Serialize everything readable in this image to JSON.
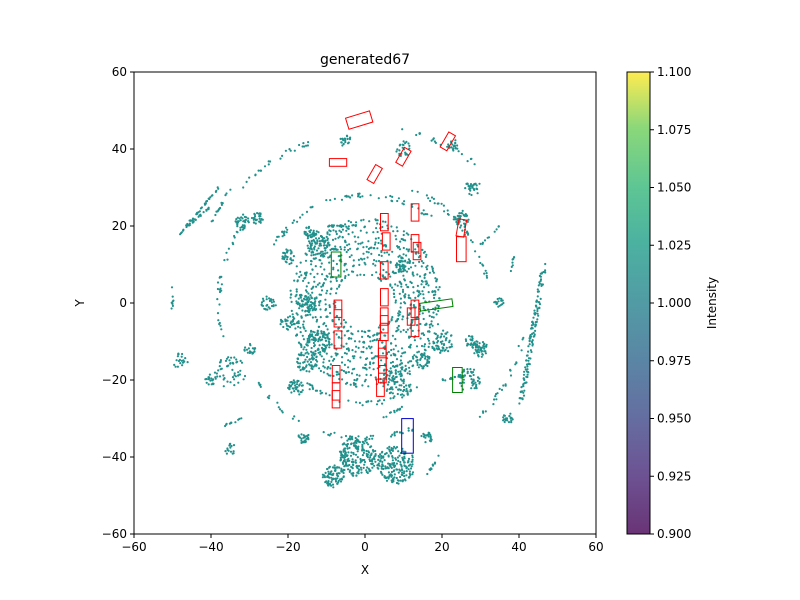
{
  "chart_data": {
    "type": "scatter",
    "title": "generated67",
    "xlabel": "X",
    "ylabel": "Y",
    "xlim": [
      -60,
      60
    ],
    "ylim": [
      -60,
      60
    ],
    "xticks": [
      -60,
      -40,
      -20,
      0,
      20,
      40,
      60
    ],
    "yticks": [
      -60,
      -40,
      -20,
      0,
      20,
      40,
      60
    ],
    "grid": false,
    "point_color": "#21918c",
    "colorbar": {
      "label": "Intensity",
      "range": [
        0.9,
        1.1
      ],
      "ticks": [
        "0.900",
        "0.925",
        "0.950",
        "0.975",
        "1.000",
        "1.025",
        "1.050",
        "1.075",
        "1.100"
      ],
      "colormap": "viridis"
    },
    "boxes": [
      {
        "color": "#ff0000",
        "cx": -1.5,
        "cy": 47.5,
        "w": 3,
        "l": 6.5,
        "angle": 17
      },
      {
        "color": "#ff0000",
        "cx": -7,
        "cy": 36.5,
        "w": 2,
        "l": 4.5,
        "angle": 0
      },
      {
        "color": "#ff0000",
        "cx": 2.5,
        "cy": 33.5,
        "w": 2,
        "l": 4.5,
        "angle": 60
      },
      {
        "color": "#ff0000",
        "cx": 10,
        "cy": 38,
        "w": 2,
        "l": 4.5,
        "angle": 60
      },
      {
        "color": "#ff0000",
        "cx": 21.5,
        "cy": 42,
        "w": 2,
        "l": 4.5,
        "angle": 60
      },
      {
        "color": "#ff0000",
        "cx": 5,
        "cy": 21,
        "w": 2,
        "l": 4.5,
        "angle": 90
      },
      {
        "color": "#ff0000",
        "cx": 13,
        "cy": 23.5,
        "w": 2,
        "l": 4.5,
        "angle": 90
      },
      {
        "color": "#ff0000",
        "cx": 25,
        "cy": 19.5,
        "w": 2,
        "l": 4.5,
        "angle": 80
      },
      {
        "color": "#ff0000",
        "cx": 5.5,
        "cy": 16,
        "w": 2,
        "l": 4.5,
        "angle": 90
      },
      {
        "color": "#ff0000",
        "cx": 13,
        "cy": 15.5,
        "w": 2,
        "l": 4.5,
        "angle": 90
      },
      {
        "color": "#ff0000",
        "cx": 13.5,
        "cy": 13.5,
        "w": 2,
        "l": 4.5,
        "angle": 90
      },
      {
        "color": "#ff0000",
        "cx": 25,
        "cy": 14,
        "w": 2.5,
        "l": 6.5,
        "angle": 90
      },
      {
        "color": "#ff0000",
        "cx": 5,
        "cy": 8.5,
        "w": 2,
        "l": 4.5,
        "angle": 90
      },
      {
        "color": "#ff0000",
        "cx": 5,
        "cy": 1.5,
        "w": 2,
        "l": 4.5,
        "angle": 90
      },
      {
        "color": "#ff0000",
        "cx": 13,
        "cy": -1.5,
        "w": 2,
        "l": 4.5,
        "angle": 90
      },
      {
        "color": "#ff0000",
        "cx": 12,
        "cy": -3.5,
        "w": 2,
        "l": 4.5,
        "angle": 90
      },
      {
        "color": "#ff0000",
        "cx": -7,
        "cy": -1.5,
        "w": 2,
        "l": 4.5,
        "angle": 90
      },
      {
        "color": "#ff0000",
        "cx": -7,
        "cy": -4,
        "w": 2,
        "l": 4.5,
        "angle": 90
      },
      {
        "color": "#ff0000",
        "cx": 5,
        "cy": -3.5,
        "w": 2,
        "l": 4.5,
        "angle": 90
      },
      {
        "color": "#ff0000",
        "cx": 5,
        "cy": -5.5,
        "w": 2,
        "l": 4.5,
        "angle": 90
      },
      {
        "color": "#ff0000",
        "cx": 5,
        "cy": -7.5,
        "w": 2,
        "l": 4.5,
        "angle": 90
      },
      {
        "color": "#ff0000",
        "cx": 13,
        "cy": -6.5,
        "w": 2,
        "l": 4.5,
        "angle": 90
      },
      {
        "color": "#ff0000",
        "cx": -7,
        "cy": -9.5,
        "w": 2,
        "l": 4.5,
        "angle": 90
      },
      {
        "color": "#ff0000",
        "cx": 4.5,
        "cy": -12,
        "w": 2,
        "l": 4.5,
        "angle": 90
      },
      {
        "color": "#ff0000",
        "cx": 4.5,
        "cy": -14,
        "w": 2,
        "l": 4.5,
        "angle": 90
      },
      {
        "color": "#ff0000",
        "cx": 4.5,
        "cy": -16,
        "w": 2,
        "l": 4.5,
        "angle": 90
      },
      {
        "color": "#ff0000",
        "cx": 4.5,
        "cy": -18.5,
        "w": 2,
        "l": 4.5,
        "angle": 90
      },
      {
        "color": "#ff0000",
        "cx": -7.5,
        "cy": -18.5,
        "w": 2,
        "l": 4.5,
        "angle": 90
      },
      {
        "color": "#ff0000",
        "cx": 4,
        "cy": -22,
        "w": 2,
        "l": 4.5,
        "angle": 90
      },
      {
        "color": "#ff0000",
        "cx": -7.5,
        "cy": -23,
        "w": 2,
        "l": 4.5,
        "angle": 90
      },
      {
        "color": "#ff0000",
        "cx": -7.5,
        "cy": -25,
        "w": 2,
        "l": 4.5,
        "angle": 90
      },
      {
        "color": "#008000",
        "cx": -7.5,
        "cy": 10,
        "w": 2.5,
        "l": 6.5,
        "angle": 90
      },
      {
        "color": "#008000",
        "cx": 18.5,
        "cy": -0.5,
        "w": 2,
        "l": 8.5,
        "angle": 8
      },
      {
        "color": "#008000",
        "cx": 24,
        "cy": -20,
        "w": 2.5,
        "l": 6.5,
        "angle": 90
      },
      {
        "color": "#0000cc",
        "cx": 11,
        "cy": -34.5,
        "w": 3,
        "l": 9,
        "angle": 90
      }
    ]
  }
}
